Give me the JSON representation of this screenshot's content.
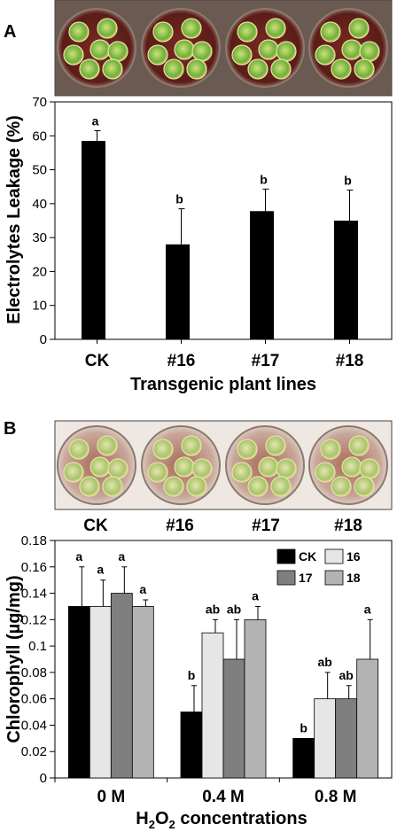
{
  "panels": {
    "a_letter": "A",
    "b_letter": "B",
    "photo_b_labels": [
      "CK",
      "#16",
      "#17",
      "#18"
    ]
  },
  "chart_data": [
    {
      "type": "bar",
      "categories": [
        "CK",
        "#16",
        "#17",
        "#18"
      ],
      "values": [
        58.5,
        28,
        37.8,
        35
      ],
      "errors": [
        3,
        10.5,
        6.5,
        9
      ],
      "significance": [
        "a",
        "b",
        "b",
        "b"
      ],
      "xlabel": "Transgenic plant lines",
      "ylabel": "Electrolytes Leakage (%)",
      "ylim": [
        0,
        70
      ],
      "yticks": [
        "0",
        "10",
        "20",
        "30",
        "40",
        "50",
        "60",
        "70"
      ],
      "bar_color": "#000000"
    },
    {
      "type": "bar",
      "categories": [
        "0 M",
        "0.4 M",
        "0.8 M"
      ],
      "xlabel_parts": [
        "H",
        "2",
        "O",
        "2",
        " concentrations"
      ],
      "ylabel": "Chlorophyll (µg/mg)",
      "ylim": [
        0,
        0.18
      ],
      "yticks": [
        "0",
        "0.02",
        "0.04",
        "0.06",
        "0.08",
        "0.1",
        "0.12",
        "0.14",
        "0.16",
        "0.18"
      ],
      "series": [
        {
          "name": "CK",
          "color": "#000000",
          "values": [
            0.13,
            0.05,
            0.03
          ],
          "errors": [
            0.03,
            0.02,
            0.0
          ],
          "significance": [
            "a",
            "b",
            "b"
          ]
        },
        {
          "name": "16",
          "color": "#e6e6e6",
          "values": [
            0.13,
            0.11,
            0.06
          ],
          "errors": [
            0.02,
            0.01,
            0.02
          ],
          "significance": [
            "a",
            "ab",
            "ab"
          ]
        },
        {
          "name": "17",
          "color": "#7f7f7f",
          "values": [
            0.14,
            0.09,
            0.06
          ],
          "errors": [
            0.02,
            0.03,
            0.01
          ],
          "significance": [
            "a",
            "ab",
            "ab"
          ]
        },
        {
          "name": "18",
          "color": "#b3b3b3",
          "values": [
            0.13,
            0.12,
            0.09
          ],
          "errors": [
            0.005,
            0.01,
            0.03
          ],
          "significance": [
            "a",
            "a",
            "a"
          ]
        }
      ],
      "legend_position": "top-right"
    }
  ]
}
